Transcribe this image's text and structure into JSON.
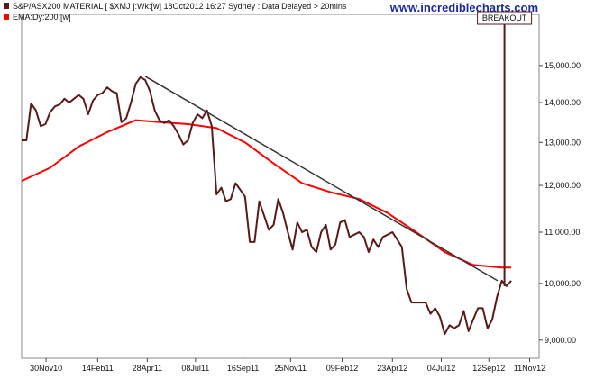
{
  "legend": [
    {
      "label": "S&P/ASX200 MATERIAL  [ $XMJ ]:Wk:[w]  18Oct2012 16:27  Sydney : Data Delayed > 20mins",
      "color": "#5a1a1a"
    },
    {
      "label": "EMA:Dy:200:[w]",
      "color": "#ff0000"
    }
  ],
  "site_label": "www.incrediblecharts.com",
  "annotation": {
    "label": "BREAKOUT",
    "date": "2012-10-05"
  },
  "chart_data": {
    "type": "line",
    "scale": "log",
    "ylim": [
      8700,
      16500
    ],
    "xlim": [
      "2010-10-25",
      "2012-11-25"
    ],
    "y_ticks": [
      {
        "value": 9000,
        "label": "9,000.00"
      },
      {
        "value": 10000,
        "label": "10,000.00"
      },
      {
        "value": 11000,
        "label": "11,000.00"
      },
      {
        "value": 12000,
        "label": "12,000.00"
      },
      {
        "value": 13000,
        "label": "13,000.00"
      },
      {
        "value": 14000,
        "label": "14,000.00"
      },
      {
        "value": 15000,
        "label": "15,000.00"
      }
    ],
    "x_ticks": [
      {
        "date": "2010-11-30",
        "label": "30Nov10"
      },
      {
        "date": "2011-02-14",
        "label": "14Feb11"
      },
      {
        "date": "2011-04-28",
        "label": "28Apr11"
      },
      {
        "date": "2011-07-08",
        "label": "08Jul11"
      },
      {
        "date": "2011-09-16",
        "label": "16Sep11"
      },
      {
        "date": "2011-11-25",
        "label": "25Nov11"
      },
      {
        "date": "2012-02-09",
        "label": "09Feb12"
      },
      {
        "date": "2012-04-23",
        "label": "23Apr12"
      },
      {
        "date": "2012-07-04",
        "label": "04Jul12"
      },
      {
        "date": "2012-09-12",
        "label": "12Sep12"
      },
      {
        "date": "2012-11-11",
        "label": "11Nov12"
      }
    ],
    "series": [
      {
        "name": "S&P/ASX200 MATERIAL  [ $XMJ ]:Wk:[w]",
        "color": "#5a1a1a",
        "x": [
          "2010-10-25",
          "2010-11-01",
          "2010-11-08",
          "2010-11-15",
          "2010-11-22",
          "2010-11-29",
          "2010-12-06",
          "2010-12-13",
          "2010-12-20",
          "2010-12-27",
          "2011-01-03",
          "2011-01-10",
          "2011-01-17",
          "2011-01-24",
          "2011-01-31",
          "2011-02-07",
          "2011-02-14",
          "2011-02-21",
          "2011-02-28",
          "2011-03-07",
          "2011-03-14",
          "2011-03-21",
          "2011-03-28",
          "2011-04-04",
          "2011-04-11",
          "2011-04-18",
          "2011-04-25",
          "2011-05-02",
          "2011-05-09",
          "2011-05-16",
          "2011-05-23",
          "2011-05-30",
          "2011-06-06",
          "2011-06-13",
          "2011-06-20",
          "2011-06-27",
          "2011-07-04",
          "2011-07-11",
          "2011-07-18",
          "2011-07-25",
          "2011-08-01",
          "2011-08-08",
          "2011-08-15",
          "2011-08-22",
          "2011-08-29",
          "2011-09-05",
          "2011-09-12",
          "2011-09-19",
          "2011-09-26",
          "2011-10-03",
          "2011-10-10",
          "2011-10-17",
          "2011-10-24",
          "2011-10-31",
          "2011-11-07",
          "2011-11-14",
          "2011-11-21",
          "2011-11-28",
          "2011-12-05",
          "2011-12-12",
          "2011-12-19",
          "2011-12-26",
          "2012-01-02",
          "2012-01-09",
          "2012-01-16",
          "2012-01-23",
          "2012-01-30",
          "2012-02-06",
          "2012-02-13",
          "2012-02-20",
          "2012-02-27",
          "2012-03-05",
          "2012-03-12",
          "2012-03-19",
          "2012-03-26",
          "2012-04-02",
          "2012-04-09",
          "2012-04-16",
          "2012-04-23",
          "2012-04-30",
          "2012-05-07",
          "2012-05-14",
          "2012-05-21",
          "2012-05-28",
          "2012-06-04",
          "2012-06-11",
          "2012-06-18",
          "2012-06-25",
          "2012-07-02",
          "2012-07-09",
          "2012-07-16",
          "2012-07-23",
          "2012-07-30",
          "2012-08-06",
          "2012-08-13",
          "2012-08-20",
          "2012-08-27",
          "2012-09-03",
          "2012-09-10",
          "2012-09-17",
          "2012-09-24",
          "2012-10-01",
          "2012-10-08",
          "2012-10-15"
        ],
        "values": [
          13050,
          13050,
          13980,
          13800,
          13400,
          13450,
          13750,
          13900,
          13950,
          14100,
          14000,
          14100,
          14200,
          14100,
          13700,
          14050,
          14200,
          14250,
          14400,
          14300,
          14250,
          13500,
          13600,
          14000,
          14500,
          14680,
          14600,
          14300,
          13800,
          13550,
          13480,
          13550,
          13400,
          13200,
          12950,
          13050,
          13480,
          13700,
          13600,
          13800,
          13400,
          11800,
          11950,
          11650,
          11700,
          12050,
          11900,
          11750,
          10800,
          10800,
          11650,
          11350,
          11050,
          11150,
          11700,
          11400,
          11000,
          10650,
          11200,
          11000,
          11050,
          10700,
          10600,
          11000,
          11150,
          10650,
          10750,
          11200,
          11250,
          10900,
          10950,
          11000,
          10900,
          10600,
          10850,
          10700,
          10900,
          10950,
          11000,
          10850,
          10700,
          9900,
          9650,
          9650,
          9650,
          9650,
          9450,
          9550,
          9400,
          9100,
          9250,
          9200,
          9250,
          9500,
          9150,
          9350,
          9550,
          9550,
          9200,
          9350,
          9750,
          10050,
          9950,
          10050
        ]
      },
      {
        "name": "EMA:Dy:200:[w]",
        "color": "#ff0000",
        "x": [
          "2010-10-25",
          "2010-12-06",
          "2011-01-17",
          "2011-02-28",
          "2011-04-11",
          "2011-05-16",
          "2011-06-27",
          "2011-08-08",
          "2011-09-19",
          "2011-10-31",
          "2011-12-12",
          "2012-01-23",
          "2012-03-05",
          "2012-04-16",
          "2012-05-28",
          "2012-07-09",
          "2012-08-20",
          "2012-10-01",
          "2012-10-15"
        ],
        "values": [
          12100,
          12400,
          12900,
          13250,
          13550,
          13500,
          13450,
          13350,
          13000,
          12500,
          12050,
          11850,
          11700,
          11400,
          11000,
          10600,
          10350,
          10300,
          10300
        ]
      }
    ],
    "trendline": {
      "x": [
        "2011-04-25",
        "2012-09-25"
      ],
      "values": [
        14700,
        10050
      ]
    }
  }
}
